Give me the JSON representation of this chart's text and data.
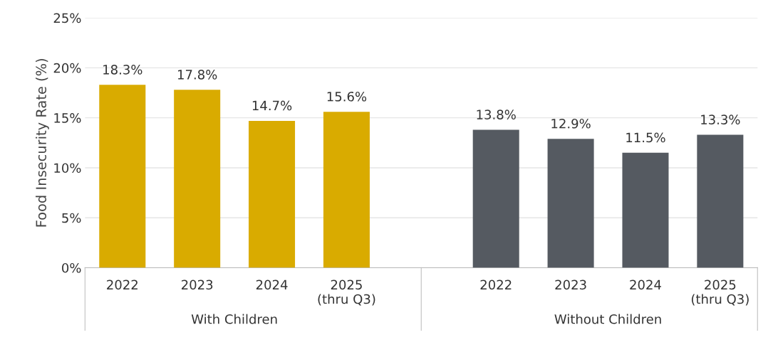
{
  "chart_data": {
    "type": "bar",
    "ylabel": "Food Insecurity Rate (%)",
    "categories": [
      "2022",
      "2023",
      "2024",
      "2025\n(thru Q3)",
      null,
      "2022",
      "2023",
      "2024",
      "2025\n(thru Q3)"
    ],
    "values": [
      18.3,
      17.8,
      14.7,
      15.6,
      null,
      13.8,
      12.9,
      11.5,
      13.3
    ],
    "colors": [
      "#d9ab00",
      "#d9ab00",
      "#d9ab00",
      "#d9ab00",
      null,
      "#555a61",
      "#555a61",
      "#555a61",
      "#555a61"
    ],
    "value_labels": [
      "18.3%",
      "17.8%",
      "14.7%",
      "15.6%",
      null,
      "13.8%",
      "12.9%",
      "11.5%",
      "13.3%"
    ],
    "annotations": [
      "With Children",
      "Without Children"
    ],
    "ylim": [
      0,
      25
    ],
    "yticks": [
      {
        "value": 0,
        "label": "0%"
      },
      {
        "value": 5,
        "label": "5%"
      },
      {
        "value": 10,
        "label": "10%"
      },
      {
        "value": 15,
        "label": "15%"
      },
      {
        "value": 20,
        "label": "20%"
      },
      {
        "value": 25,
        "label": "25%"
      }
    ],
    "grid": "y"
  }
}
